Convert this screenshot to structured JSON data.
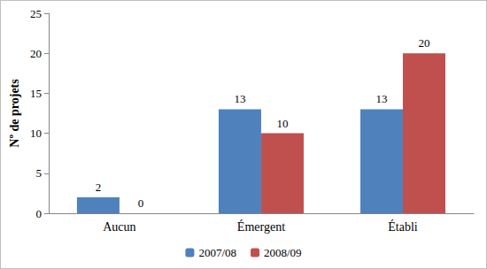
{
  "chart_data": {
    "type": "bar",
    "y_label": "Nº de projets",
    "categories": [
      "Aucun",
      "Émergent",
      "Établi"
    ],
    "series": [
      {
        "name": "2007/08",
        "color": "#4f81bd",
        "values": [
          2,
          13,
          13
        ]
      },
      {
        "name": "2008/09",
        "color": "#c0504d",
        "values": [
          0,
          10,
          20
        ]
      }
    ],
    "ylim": [
      0,
      25
    ],
    "yticks": [
      0,
      5,
      10,
      15,
      20,
      25
    ],
    "grid": false,
    "legend": "bottom",
    "data_labels": true
  }
}
